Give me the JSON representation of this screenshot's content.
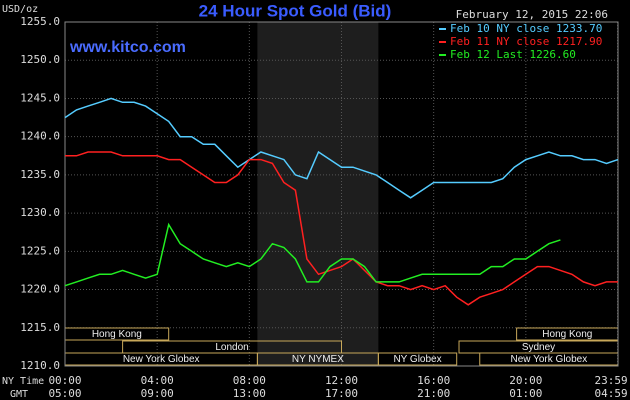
{
  "chart_data": {
    "type": "line",
    "title": "24 Hour Spot Gold (Bid)",
    "timestamp": "February 12, 2015 22:06",
    "watermark": "www.kitco.com",
    "y_label": "USD/oz",
    "x_row_label": "NY Time",
    "x2_row_label": "GMT",
    "xlim": [
      0,
      24
    ],
    "xticks": [
      {
        "value": 0,
        "label": "00:00"
      },
      {
        "value": 4,
        "label": "04:00"
      },
      {
        "value": 8,
        "label": "08:00"
      },
      {
        "value": 12,
        "label": "12:00"
      },
      {
        "value": 16,
        "label": "16:00"
      },
      {
        "value": 20,
        "label": "20:00"
      },
      {
        "value": 23.983,
        "label": "23:59"
      }
    ],
    "x2tick_labels": [
      "05:00",
      "09:00",
      "13:00",
      "17:00",
      "21:00",
      "01:00",
      "04:59"
    ],
    "ylim": [
      1210,
      1255
    ],
    "yticks": [
      {
        "value": 1210,
        "label": "1210.0"
      },
      {
        "value": 1215,
        "label": "1215.0"
      },
      {
        "value": 1220,
        "label": "1220.0"
      },
      {
        "value": 1225,
        "label": "1225.0"
      },
      {
        "value": 1230,
        "label": "1230.0"
      },
      {
        "value": 1235,
        "label": "1235.0"
      },
      {
        "value": 1240,
        "label": "1240.0"
      },
      {
        "value": 1245,
        "label": "1245.0"
      },
      {
        "value": 1250,
        "label": "1250.0"
      },
      {
        "value": 1255,
        "label": "1255.0"
      }
    ],
    "grid": true,
    "sessions": [
      {
        "label": "Hong Kong",
        "start": 0,
        "end": 4.5,
        "row": 0
      },
      {
        "label": "Hong Kong",
        "start": 19.6,
        "end": 24,
        "row": 0
      },
      {
        "label": "London",
        "start": 2.5,
        "end": 12,
        "row": 1
      },
      {
        "label": "Sydney",
        "start": 17.1,
        "end": 24,
        "row": 1
      },
      {
        "label": "New York Globex",
        "start": 0,
        "end": 8.35,
        "row": 2
      },
      {
        "label": "NY NYMEX",
        "start": 8.35,
        "end": 13.6,
        "row": 2,
        "highlight": true
      },
      {
        "label": "NY Globex",
        "start": 13.6,
        "end": 17,
        "row": 2
      },
      {
        "label": "New York Globex",
        "start": 18,
        "end": 24,
        "row": 2
      }
    ],
    "x": [
      0,
      0.5,
      1,
      1.5,
      2,
      2.5,
      3,
      3.5,
      4,
      4.5,
      5,
      5.5,
      6,
      6.5,
      7,
      7.5,
      8,
      8.5,
      9,
      9.5,
      10,
      10.5,
      11,
      11.5,
      12,
      12.5,
      13,
      13.5,
      14,
      14.5,
      15,
      15.5,
      16,
      16.5,
      17,
      17.5,
      18,
      18.5,
      19,
      19.5,
      20,
      20.5,
      21,
      21.5,
      22,
      22.5,
      23,
      23.5,
      24
    ],
    "series": [
      {
        "name": "Feb 10 NY close 1233.70",
        "color": "#55ccff",
        "values": [
          1242.5,
          1243.5,
          1244,
          1244.5,
          1245,
          1244.5,
          1244.5,
          1244,
          1243,
          1242,
          1240,
          1240,
          1239,
          1239,
          1237.5,
          1236,
          1237,
          1238,
          1237.5,
          1237,
          1235,
          1234.5,
          1238,
          1237,
          1236,
          1236,
          1235.5,
          1235,
          1234,
          1233,
          1232,
          1233,
          1234,
          1234,
          1234,
          1234,
          1234,
          1234,
          1234.5,
          1236,
          1237,
          1237.5,
          1238,
          1237.5,
          1237.5,
          1237,
          1237,
          1236.5,
          1237
        ]
      },
      {
        "name": "Feb 11 NY close 1217.90",
        "color": "#ff2020",
        "values": [
          1237.5,
          1237.5,
          1238,
          1238,
          1238,
          1237.5,
          1237.5,
          1237.5,
          1237.5,
          1237,
          1237,
          1236,
          1235,
          1234,
          1234,
          1235,
          1237,
          1237,
          1236.5,
          1234,
          1233,
          1224,
          1222,
          1222.5,
          1223,
          1224,
          1222.5,
          1221,
          1220.5,
          1220.5,
          1220,
          1220.5,
          1220,
          1220.5,
          1219,
          1218,
          1219,
          1219.5,
          1220,
          1221,
          1222,
          1223,
          1223,
          1222.5,
          1222,
          1221,
          1220.5,
          1221,
          1221
        ]
      },
      {
        "name": "Feb 12 Last 1226.60",
        "color": "#22ee22",
        "values": [
          1220.5,
          1221,
          1221.5,
          1222,
          1222,
          1222.5,
          1222,
          1221.5,
          1222,
          1228.5,
          1226,
          1225,
          1224,
          1223.5,
          1223,
          1223.5,
          1223,
          1224,
          1226,
          1225.5,
          1224,
          1221,
          1221,
          1223,
          1224,
          1224,
          1223,
          1221,
          1221,
          1221,
          1221.5,
          1222,
          1222,
          1222,
          1222,
          1222,
          1222,
          1223,
          1223,
          1224,
          1224,
          1225,
          1226,
          1226.5,
          null,
          null,
          null,
          null,
          null
        ]
      }
    ]
  }
}
